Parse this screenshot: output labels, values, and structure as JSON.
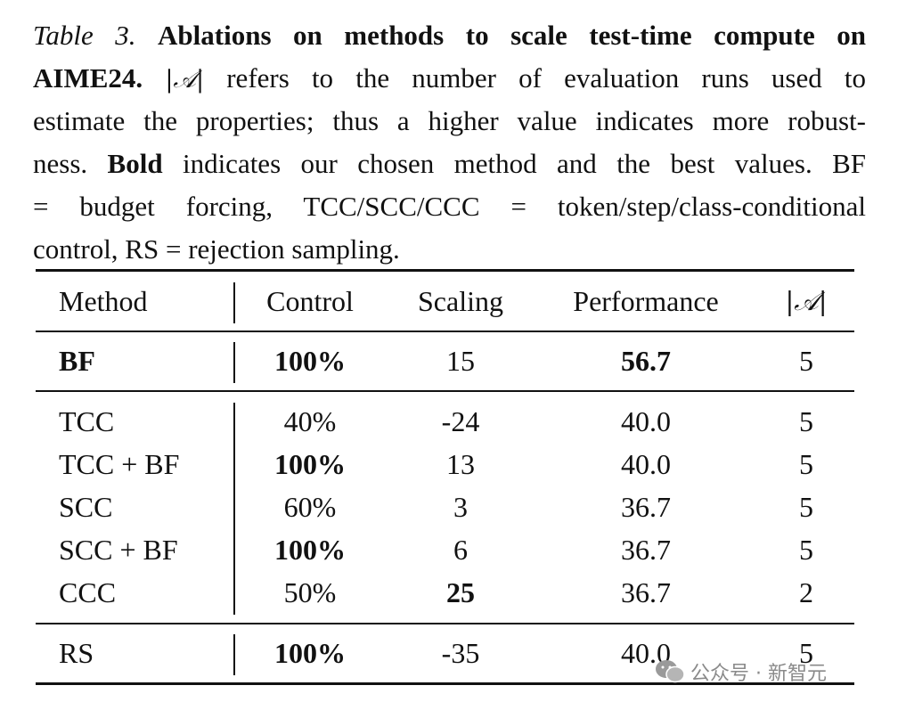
{
  "caption": {
    "label": "Table 3.",
    "title": "Ablations on methods to scale test-time compute on AIME24.",
    "symbol": "|𝒜|",
    "text1": "refers to the number of evaluation runs used to estimate the properties; thus a higher value indicates more robustness.",
    "bold_word": "Bold",
    "text2": "indicates our chosen method and the best values. BF = budget forcing, TCC/SCC/CCC = token/step/class-conditional control, RS = rejection sampling.",
    "lines": [
      [
        "Table 3.",
        "Ablations on methods to scale test-time compute on"
      ],
      [
        "AIME24.",
        "|𝒜|",
        "refers to the number of evaluation runs used to"
      ],
      [
        "estimate the properties; thus a higher value indicates more robust-"
      ],
      [
        "ness.",
        "Bold",
        "indicates our chosen method and the best values. BF"
      ],
      [
        "= budget forcing, TCC/SCC/CCC = token/step/class-conditional"
      ],
      [
        "control, RS = rejection sampling."
      ]
    ]
  },
  "table": {
    "headers": [
      "Method",
      "Control",
      "Scaling",
      "Performance",
      "|𝒜|"
    ],
    "rows": [
      {
        "method": "BF",
        "control": "100%",
        "scaling": "15",
        "performance": "56.7",
        "runs": "5",
        "bold": [
          "method",
          "control",
          "performance"
        ]
      },
      {
        "method": "TCC",
        "control": "40%",
        "scaling": "-24",
        "performance": "40.0",
        "runs": "5",
        "bold": []
      },
      {
        "method": "TCC + BF",
        "control": "100%",
        "scaling": "13",
        "performance": "40.0",
        "runs": "5",
        "bold": [
          "control"
        ]
      },
      {
        "method": "SCC",
        "control": "60%",
        "scaling": "3",
        "performance": "36.7",
        "runs": "5",
        "bold": []
      },
      {
        "method": "SCC + BF",
        "control": "100%",
        "scaling": "6",
        "performance": "36.7",
        "runs": "5",
        "bold": [
          "control"
        ]
      },
      {
        "method": "CCC",
        "control": "50%",
        "scaling": "25",
        "performance": "36.7",
        "runs": "2",
        "bold": [
          "scaling"
        ]
      },
      {
        "method": "RS",
        "control": "100%",
        "scaling": "-35",
        "performance": "40.0",
        "runs": "5",
        "bold": [
          "control"
        ]
      }
    ]
  },
  "watermark": {
    "text": "公众号 · 新智元",
    "icon": "wechat-icon"
  }
}
